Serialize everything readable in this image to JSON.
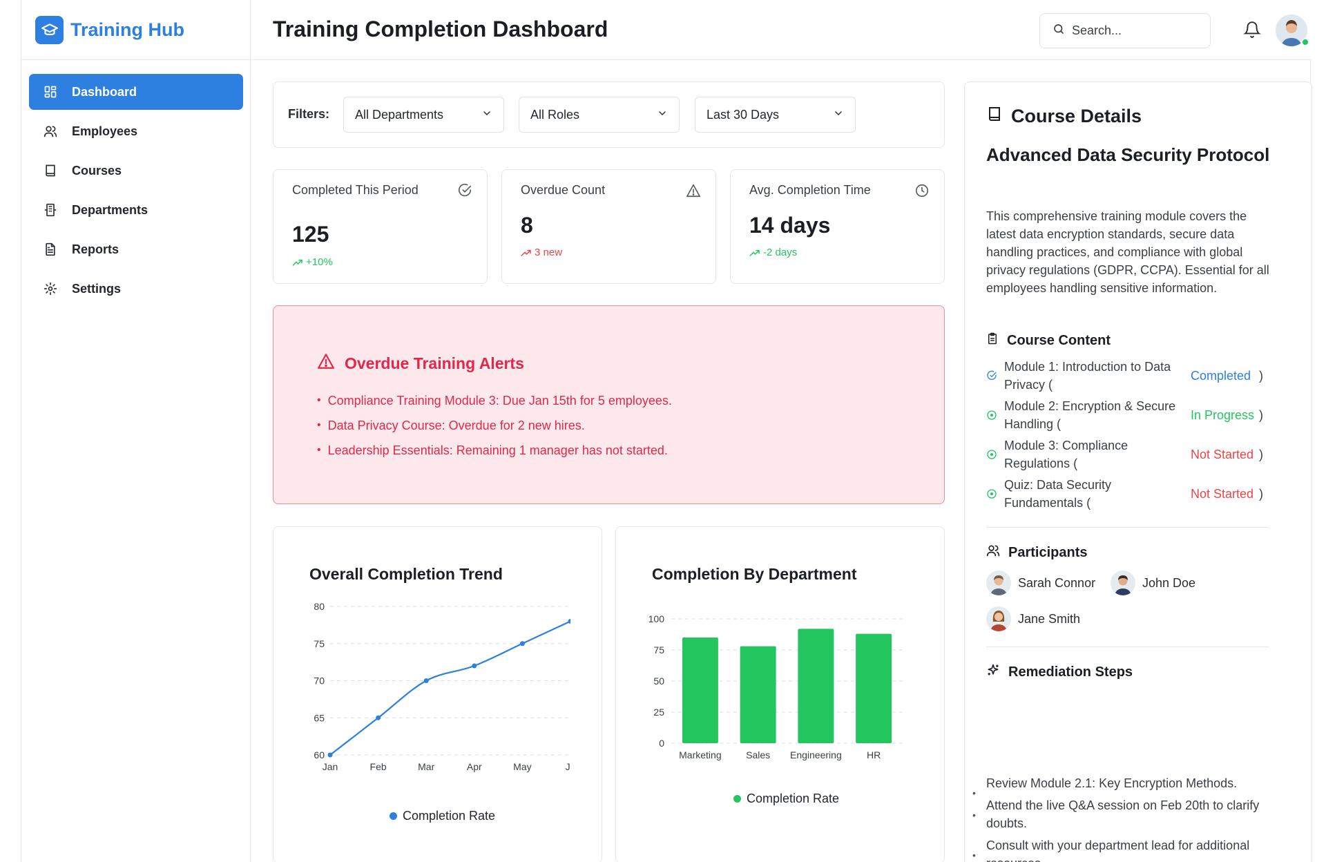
{
  "brand": {
    "name": "Training Hub"
  },
  "sidebar": {
    "items": [
      {
        "label": "Dashboard",
        "icon": "grid-icon",
        "active": true
      },
      {
        "label": "Employees",
        "icon": "users-icon",
        "active": false
      },
      {
        "label": "Courses",
        "icon": "book-icon",
        "active": false
      },
      {
        "label": "Departments",
        "icon": "building-icon",
        "active": false
      },
      {
        "label": "Reports",
        "icon": "file-icon",
        "active": false
      },
      {
        "label": "Settings",
        "icon": "gear-icon",
        "active": false
      }
    ]
  },
  "header": {
    "title": "Training Completion Dashboard",
    "search_placeholder": "Search..."
  },
  "filters": {
    "label": "Filters:",
    "department": "All Departments",
    "role": "All Roles",
    "period": "Last 30 Days"
  },
  "kpis": [
    {
      "title": "Completed This Period",
      "value": "125",
      "delta": "+10%",
      "delta_color": "#22c55e",
      "icon": "check-circle-icon"
    },
    {
      "title": "Overdue Count",
      "value": "8",
      "delta": "3 new",
      "delta_color": "#ef4444",
      "icon": "warning-icon"
    },
    {
      "title": "Avg. Completion Time",
      "value": "14 days",
      "delta": "-2 days",
      "delta_color": "#22c55e",
      "icon": "clock-icon"
    }
  ],
  "alerts": {
    "title": "Overdue Training Alerts",
    "items": [
      "Compliance Training Module 3: Due Jan 15th for 5 employees.",
      "Data Privacy Course: Overdue for 2 new hires.",
      "Leadership Essentials: Remaining 1 manager has not started."
    ]
  },
  "colors": {
    "accent": "#2d7fe0",
    "alert": "#e0284a",
    "success": "#22c55e",
    "line": "#2d7fe0",
    "bar": "#22c55e"
  },
  "chart_data": [
    {
      "type": "line",
      "title": "Overall Completion Trend",
      "x": [
        "Jan",
        "Feb",
        "Mar",
        "Apr",
        "May",
        "Ju"
      ],
      "series": [
        {
          "name": "Completion Rate",
          "values": [
            60,
            65,
            70,
            72,
            75,
            78
          ]
        }
      ],
      "y_ticks": [
        "60",
        "65",
        "70",
        "75",
        "80"
      ],
      "ylim": [
        60,
        80
      ],
      "grid": true,
      "legend": "bottom"
    },
    {
      "type": "bar",
      "title": "Completion By Department",
      "categories": [
        "Marketing",
        "Sales",
        "Engineering",
        "HR"
      ],
      "series": [
        {
          "name": "Completion Rate",
          "values": [
            85,
            78,
            92,
            88
          ]
        }
      ],
      "y_ticks": [
        "0",
        "25",
        "50",
        "75",
        "100"
      ],
      "ylim": [
        0,
        100
      ],
      "grid": true,
      "legend": "bottom"
    }
  ],
  "details": {
    "header": "Course Details",
    "course_name": "Advanced Data Security Protocol",
    "description": "This comprehensive training module covers the latest data encryption standards, secure data handling practices, and compliance with global privacy regulations (GDPR, CCPA). Essential for all employees handling sensitive information.",
    "content_header": "Course Content",
    "modules": [
      {
        "name": "Module 1: Introduction to Data Privacy (",
        "status": "Completed",
        "status_color": "#2d7fe0",
        "paren": ")"
      },
      {
        "name": "Module 2: Encryption & Secure Handling (",
        "status": "In Progress",
        "status_color": "#22c55e",
        "paren": ")"
      },
      {
        "name": "Module 3: Compliance Regulations (",
        "status": "Not Started",
        "status_color": "#ef4444",
        "paren": ")"
      },
      {
        "name": "Quiz: Data Security Fundamentals (",
        "status": "Not Started",
        "status_color": "#ef4444",
        "paren": ")"
      }
    ],
    "participants_header": "Participants",
    "participants": [
      "Sarah Connor",
      "John Doe",
      "Jane Smith"
    ],
    "remediation_header": "Remediation Steps",
    "remediation": [
      "Review Module 2.1: Key Encryption Methods.",
      "Attend the live Q&A session on Feb 20th to clarify doubts.",
      "Consult with your department lead for additional resources."
    ]
  }
}
